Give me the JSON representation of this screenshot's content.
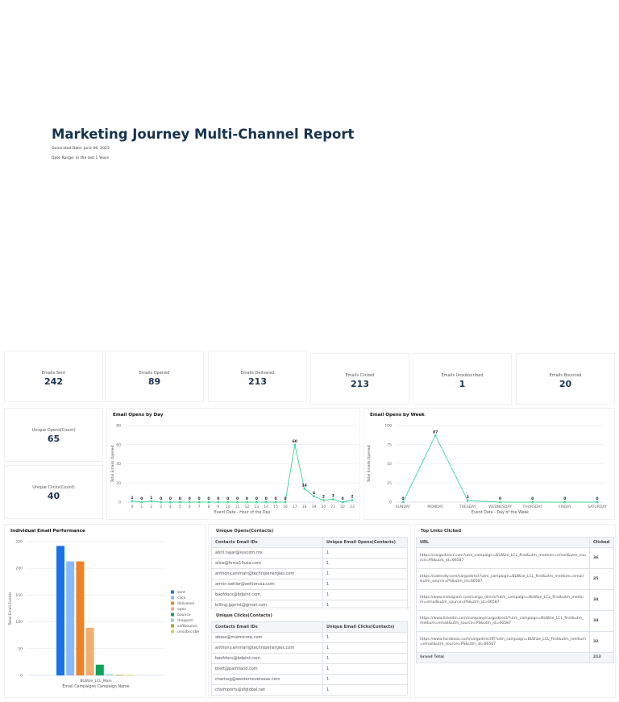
{
  "report": {
    "title": "Marketing Journey Multi-Channel Report",
    "generated": "Generated Date: June 06, 2023",
    "range": "Date Range: In the last 1 Years"
  },
  "kpis": [
    {
      "label": "Emails Sent",
      "value": "242"
    },
    {
      "label": "Emails Opened",
      "value": "89"
    },
    {
      "label": "Emails Delivered",
      "value": "213"
    },
    {
      "label": "Emails Clicked",
      "value": "213"
    },
    {
      "label": "Emails Unsubscribed",
      "value": "1"
    },
    {
      "label": "Emails Bounced",
      "value": "20"
    }
  ],
  "unique": [
    {
      "label": "Unique Opens(Count)",
      "value": "65"
    },
    {
      "label": "Unique Clicks(Count)",
      "value": "40"
    }
  ],
  "colors": {
    "title": "#17344f",
    "line": "#3dd495"
  },
  "chart_data": [
    {
      "type": "line",
      "title": "Email Opens by Day",
      "xlabel": "Event Date - Hour of the Day",
      "ylabel": "Total Emails Opened",
      "categories": [
        "0",
        "1",
        "2",
        "3",
        "4",
        "5",
        "6",
        "7",
        "8",
        "9",
        "10",
        "11",
        "12",
        "13",
        "14",
        "15",
        "16",
        "17",
        "18",
        "19",
        "20",
        "21",
        "22",
        "23"
      ],
      "values": [
        1,
        0,
        1,
        0,
        0,
        0,
        0,
        0,
        0,
        0,
        0,
        0,
        0,
        0,
        0,
        0,
        0,
        60,
        14,
        6,
        2,
        3,
        0,
        2
      ],
      "ylim": [
        0,
        80
      ],
      "yticks": [
        0,
        20,
        40,
        60,
        80
      ],
      "grid": true,
      "data_labels": true
    },
    {
      "type": "line",
      "title": "Email Opens by Week",
      "xlabel": "Event Date - Day of the Week",
      "ylabel": "Total Emails Opened",
      "categories": [
        "SUNDAY",
        "MONDAY",
        "TUESDAY",
        "WEDNESDAY",
        "THURSDAY",
        "FRIDAY",
        "SATURDAY"
      ],
      "values": [
        0,
        87,
        2,
        0,
        0,
        0,
        0
      ],
      "ylim": [
        0,
        100
      ],
      "yticks": [
        0,
        25,
        50,
        75,
        100
      ],
      "grid": true,
      "data_labels": true
    },
    {
      "type": "bar",
      "title": "Individual Email Performance",
      "xlabel": "Email Campaigns Campaign Name",
      "ylabel": "Total Email Events",
      "categories": [
        "BLWize_LCL_Main"
      ],
      "ylim": [
        0,
        250
      ],
      "yticks": [
        0,
        50,
        100,
        150,
        200,
        250
      ],
      "legend": "right",
      "series": [
        {
          "name": "sent",
          "values": [
            242
          ],
          "color": "#1a73e8"
        },
        {
          "name": "click",
          "values": [
            213
          ],
          "color": "#8ab9f8"
        },
        {
          "name": "delivered",
          "values": [
            213
          ],
          "color": "#ec8427"
        },
        {
          "name": "open",
          "values": [
            89
          ],
          "color": "#f2ae72"
        },
        {
          "name": "bounce",
          "values": [
            20
          ],
          "color": "#0fa35a"
        },
        {
          "name": "dropped",
          "values": [
            2
          ],
          "color": "#8fdcb6"
        },
        {
          "name": "softbounce",
          "values": [
            1
          ],
          "color": "#a8a232"
        },
        {
          "name": "unsubscribe",
          "values": [
            1
          ],
          "color": "#dcd24a"
        }
      ]
    }
  ],
  "opens_table": {
    "title": "Unique Opens(Contacts)",
    "headers": [
      "Contacts Email IDs",
      "Unique Email Opens(Contacts)"
    ],
    "rows": [
      [
        "abril.najar@syscom.mx",
        "1"
      ],
      [
        "alice@force10usa.com",
        "1"
      ],
      [
        "anthony.ammari@technipenergies.com",
        "1"
      ],
      [
        "armin.oehler@oehlerusa.com",
        "1"
      ],
      [
        "baofdocs@bdpint.com",
        "1"
      ],
      [
        "billing.jpprint@gmail.com",
        "1"
      ]
    ]
  },
  "clicks_table": {
    "title": "Unique Clicks(Contacts)",
    "headers": [
      "Contacts Email IDs",
      "Unique Email Clicks(Contacts)"
    ],
    "rows": [
      [
        "abass@miamicorp.com",
        "1"
      ],
      [
        "anthony.ammari@technipenergies.com",
        "1"
      ],
      [
        "baofdocs@bdpint.com",
        "1"
      ],
      [
        "brett@palmland.com",
        "1"
      ],
      [
        "charissg@westernoverseas.com",
        "1"
      ],
      [
        "chsimports@sfglobal.net",
        "1"
      ]
    ]
  },
  "links_table": {
    "title": "Top Links Clicked",
    "headers": [
      "URL",
      "Clicked"
    ],
    "rows": [
      [
        "https://cargodirect.com?utm_campaign=BLWize_LCL_first&utm_medium=email&utm_source=PS&utm_id=66587",
        "36"
      ],
      [
        "https://calendly.com/cargodirect?utm_campaign=BLWize_LCL_first&utm_medium=email&utm_source=PS&utm_id=66587",
        "35"
      ],
      [
        "https://www.instagram.com/cargo_direct/?utm_campaign=BLWize_LCL_first&utm_medium=email&utm_source=PS&utm_id=66587",
        "34"
      ],
      [
        "https://www.linkedin.com/company/cargodirect/?utm_campaign=BLWize_LCL_first&utm_medium=email&utm_source=PS&utm_id=66587",
        "34"
      ],
      [
        "https://www.facebook.com/cargodirectff/?utm_campaign=BLWize_LCL_first&utm_medium=email&utm_source=PS&utm_id=66587",
        "32"
      ]
    ],
    "total_label": "Grand Total",
    "total": "213"
  }
}
